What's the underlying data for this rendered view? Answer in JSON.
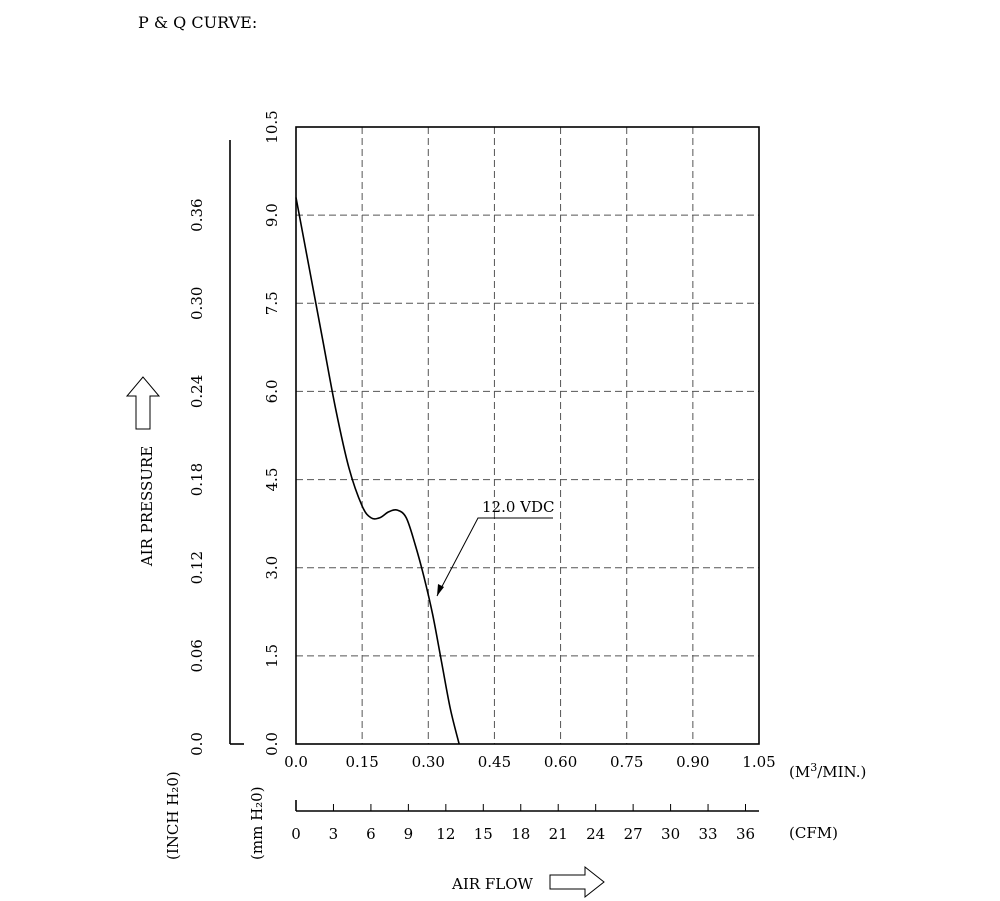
{
  "title": "P & Q CURVE:",
  "chart_data": {
    "type": "line",
    "ylabel": "AIR PRESSURE",
    "xlabel": "AIR FLOW",
    "x_unit": "(M³/MIN.)",
    "x_unit_base": "(M",
    "x_unit_sup": "3",
    "x_unit_tail": "/MIN.)",
    "x2_unit": "(CFM)",
    "y_unit_mm": "(mm H₂0)",
    "y_unit_inch": "(INCH H₂0)",
    "xlim": [
      0,
      1.05
    ],
    "ylim": [
      0,
      10.5
    ],
    "x_ticks": [
      "0.0",
      "0.15",
      "0.30",
      "0.45",
      "0.60",
      "0.75",
      "0.90",
      "1.05"
    ],
    "y_ticks_mm": [
      "0.0",
      "1.5",
      "3.0",
      "4.5",
      "6.0",
      "7.5",
      "9.0",
      "10.5"
    ],
    "y_ticks_inch": [
      "0.0",
      "0.06",
      "0.12",
      "0.18",
      "0.24",
      "0.30",
      "0.36"
    ],
    "cfm_ticks": [
      "0",
      "3",
      "6",
      "9",
      "12",
      "15",
      "18",
      "21",
      "24",
      "27",
      "30",
      "33",
      "36"
    ],
    "grid": true,
    "series": [
      {
        "name": "12.0 VDC",
        "x": [
          0.0,
          0.03,
          0.06,
          0.09,
          0.12,
          0.15,
          0.17,
          0.19,
          0.21,
          0.23,
          0.25,
          0.27,
          0.29,
          0.31,
          0.33,
          0.35,
          0.37
        ],
        "y": [
          9.3,
          8.1,
          6.9,
          5.7,
          4.7,
          4.05,
          3.85,
          3.85,
          3.95,
          3.98,
          3.85,
          3.4,
          2.85,
          2.2,
          1.4,
          0.6,
          0.0
        ]
      }
    ]
  }
}
